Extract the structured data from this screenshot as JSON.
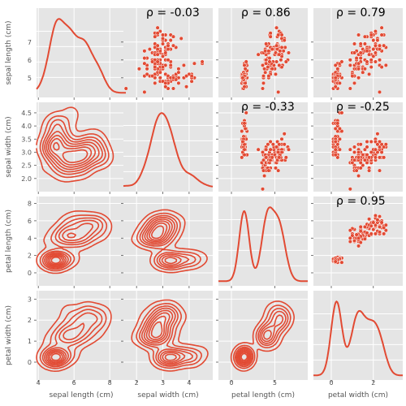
{
  "colors": {
    "series": "#e24a33",
    "panel_background": "#e5e5e5",
    "grid": "#ffffff",
    "text": "#555555",
    "annotation": "#000000"
  },
  "chart_data": {
    "type": "pairplot",
    "variables": [
      "sepal length (cm)",
      "sepal width (cm)",
      "petal length (cm)",
      "petal width (cm)"
    ],
    "x_ticks": [
      [
        "4",
        "6",
        "8"
      ],
      [
        "2",
        "3",
        "4"
      ],
      [
        "0",
        "5"
      ],
      [
        "0",
        "2"
      ]
    ],
    "y_ticks": [
      [
        "5",
        "6",
        "7"
      ],
      [
        "2.0",
        "2.5",
        "3.0",
        "3.5",
        "4.0",
        "4.5"
      ],
      [
        "0",
        "2",
        "4",
        "6",
        "8"
      ],
      [
        "0",
        "1",
        "2",
        "3"
      ]
    ],
    "diagonal": "kde",
    "lower_triangle": "kde contours",
    "upper_triangle": "scatter",
    "grid": true,
    "correlations": [
      {
        "row": 0,
        "col": 1,
        "label": "ρ = -0.03"
      },
      {
        "row": 0,
        "col": 2,
        "label": "ρ = 0.86"
      },
      {
        "row": 0,
        "col": 3,
        "label": "ρ = 0.79"
      },
      {
        "row": 1,
        "col": 2,
        "label": "ρ = -0.33"
      },
      {
        "row": 1,
        "col": 3,
        "label": "ρ = -0.25"
      },
      {
        "row": 2,
        "col": 3,
        "label": "ρ = 0.95"
      }
    ]
  }
}
